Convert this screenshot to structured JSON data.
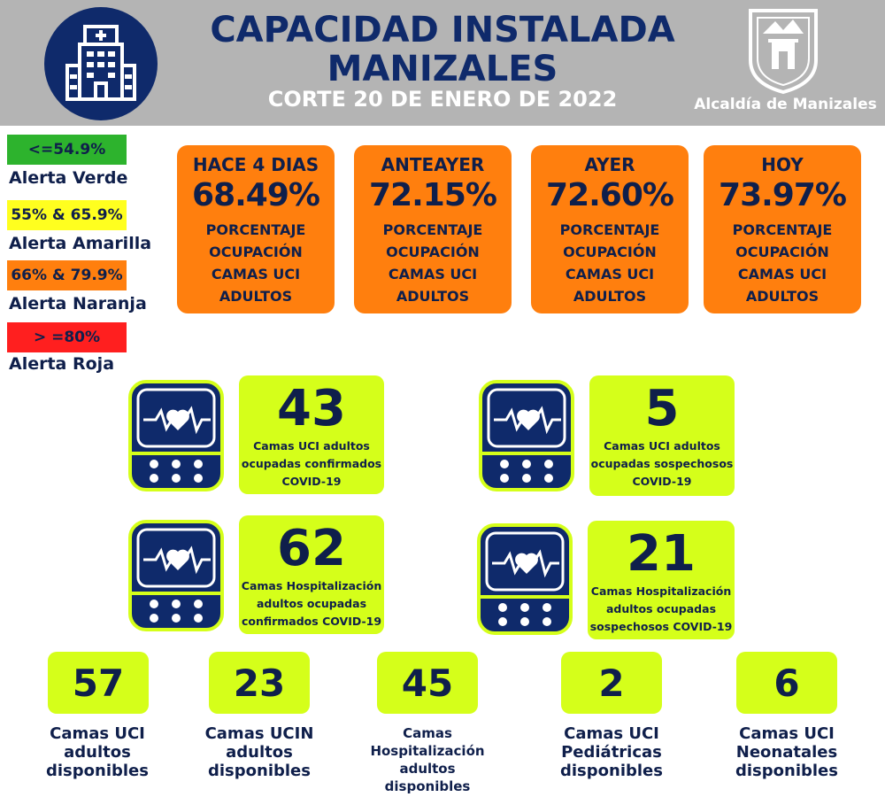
{
  "header": {
    "title_line1": "CAPACIDAD INSTALADA",
    "title_line2": "MANIZALES",
    "subtitle": "CORTE 20 DE ENERO DE 2022",
    "org_name": "Alcaldía de Manizales",
    "hospital_icon": "hospital-icon",
    "crest_icon": "manizales-crest-icon"
  },
  "legend": [
    {
      "range": "<=54.9%",
      "label": "Alerta Verde",
      "color": "#2db32d"
    },
    {
      "range": "55% & 65.9%",
      "label": "Alerta Amarilla",
      "color": "#ffff1f"
    },
    {
      "range": "66% & 79.9%",
      "label": "Alerta Naranja",
      "color": "#ff7f0e"
    },
    {
      "range": "> =80%",
      "label": "Alerta Roja",
      "color": "#ff1f1f"
    }
  ],
  "occupancy": [
    {
      "period": "HACE 4 DIAS",
      "value": "68.49%",
      "desc": [
        "PORCENTAJE",
        "OCUPACIÓN",
        "CAMAS UCI",
        "ADULTOS"
      ]
    },
    {
      "period": "ANTEAYER",
      "value": "72.15%",
      "desc": [
        "PORCENTAJE",
        "OCUPACIÓN",
        "CAMAS UCI",
        "ADULTOS"
      ]
    },
    {
      "period": "AYER",
      "value": "72.60%",
      "desc": [
        "PORCENTAJE",
        "OCUPACIÓN",
        "CAMAS UCI",
        "ADULTOS"
      ]
    },
    {
      "period": "HOY",
      "value": "73.97%",
      "desc": [
        "PORCENTAJE",
        "OCUPACIÓN",
        "CAMAS UCI",
        "ADULTOS"
      ]
    }
  ],
  "stats": [
    {
      "value": "43",
      "caption": [
        "Camas UCI adultos",
        "ocupadas confirmados",
        "COVID-19"
      ],
      "icon": "heart-monitor-icon"
    },
    {
      "value": "5",
      "caption": [
        "Camas UCI adultos",
        "ocupadas sospechosos",
        "COVID-19"
      ],
      "icon": "heart-monitor-icon"
    },
    {
      "value": "62",
      "caption": [
        "Camas  Hospitalización",
        "adultos ocupadas",
        "confirmados COVID-19"
      ],
      "icon": "heart-monitor-icon"
    },
    {
      "value": "21",
      "caption": [
        "Camas  Hospitalización",
        "adultos ocupadas",
        "sospechosos COVID-19"
      ],
      "icon": "heart-monitor-icon"
    }
  ],
  "available": [
    {
      "value": "57",
      "caption": "Camas UCI\nadultos\ndisponibles"
    },
    {
      "value": "23",
      "caption": "Camas UCIN\nadultos\ndisponibles"
    },
    {
      "value": "45",
      "caption": "Camas\nHospitalización\nadultos\ndisponibles"
    },
    {
      "value": "2",
      "caption": "Camas  UCI\nPediátricas\ndisponibles"
    },
    {
      "value": "6",
      "caption": "Camas  UCI\nNeonatales\ndisponibles"
    }
  ],
  "colors": {
    "navy": "#0f2a6b",
    "lime": "#d5ff1a",
    "orange": "#ff7f0e",
    "header_gray": "#b4b4b4"
  }
}
